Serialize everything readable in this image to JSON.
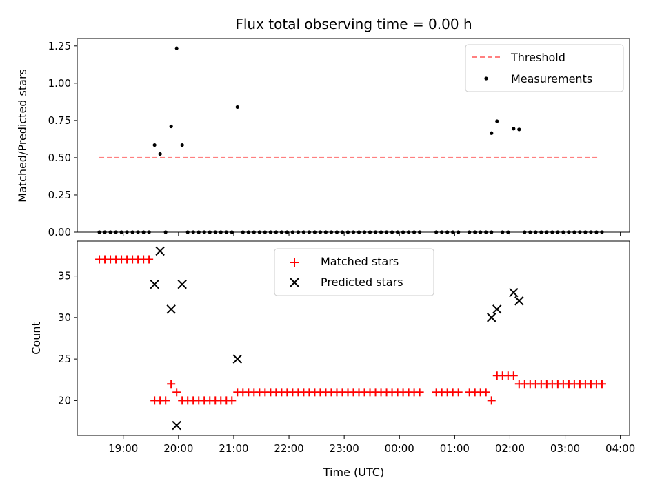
{
  "chart_data": [
    {
      "type": "scatter",
      "title": "Flux total observing time = 0.00 h",
      "xlabel": "",
      "ylabel": "Matched/Predicted stars",
      "ylim": [
        0,
        1.3
      ],
      "yticks": [
        "0.00",
        "0.25",
        "0.50",
        "0.75",
        "1.00",
        "1.25"
      ],
      "legend_position": "top-right",
      "threshold": {
        "name": "Threshold",
        "value": 0.5,
        "x_range": [
          "18:34",
          "03:36"
        ],
        "color": "#ff8080",
        "style": "dashed"
      },
      "series": [
        {
          "name": "Measurements",
          "color": "#000000",
          "marker": "dot",
          "points": [
            [
              "18:34",
              0
            ],
            [
              "18:40",
              0
            ],
            [
              "18:46",
              0
            ],
            [
              "18:52",
              0
            ],
            [
              "18:58",
              0
            ],
            [
              "19:04",
              0
            ],
            [
              "19:10",
              0
            ],
            [
              "19:16",
              0
            ],
            [
              "19:22",
              0
            ],
            [
              "19:28",
              0
            ],
            [
              "19:34",
              0.585
            ],
            [
              "19:40",
              0.525
            ],
            [
              "19:46",
              0
            ],
            [
              "19:52",
              0.71
            ],
            [
              "19:58",
              1.235
            ],
            [
              "20:04",
              0.585
            ],
            [
              "20:10",
              0
            ],
            [
              "20:16",
              0
            ],
            [
              "20:22",
              0
            ],
            [
              "20:28",
              0
            ],
            [
              "20:34",
              0
            ],
            [
              "20:40",
              0
            ],
            [
              "20:46",
              0
            ],
            [
              "20:52",
              0
            ],
            [
              "20:58",
              0
            ],
            [
              "21:04",
              0.84
            ],
            [
              "21:10",
              0
            ],
            [
              "21:16",
              0
            ],
            [
              "21:22",
              0
            ],
            [
              "21:28",
              0
            ],
            [
              "21:34",
              0
            ],
            [
              "21:40",
              0
            ],
            [
              "21:46",
              0
            ],
            [
              "21:52",
              0
            ],
            [
              "21:58",
              0
            ],
            [
              "22:04",
              0
            ],
            [
              "22:10",
              0
            ],
            [
              "22:16",
              0
            ],
            [
              "22:22",
              0
            ],
            [
              "22:28",
              0
            ],
            [
              "22:34",
              0
            ],
            [
              "22:40",
              0
            ],
            [
              "22:46",
              0
            ],
            [
              "22:52",
              0
            ],
            [
              "22:58",
              0
            ],
            [
              "23:04",
              0
            ],
            [
              "23:10",
              0
            ],
            [
              "23:16",
              0
            ],
            [
              "23:22",
              0
            ],
            [
              "23:28",
              0
            ],
            [
              "23:34",
              0
            ],
            [
              "23:40",
              0
            ],
            [
              "23:46",
              0
            ],
            [
              "23:52",
              0
            ],
            [
              "23:58",
              0
            ],
            [
              "00:04",
              0
            ],
            [
              "00:10",
              0
            ],
            [
              "00:16",
              0
            ],
            [
              "00:22",
              0
            ],
            [
              "00:40",
              0
            ],
            [
              "00:46",
              0
            ],
            [
              "00:52",
              0
            ],
            [
              "00:58",
              0
            ],
            [
              "01:04",
              0
            ],
            [
              "01:16",
              0
            ],
            [
              "01:22",
              0
            ],
            [
              "01:28",
              0
            ],
            [
              "01:34",
              0
            ],
            [
              "01:40",
              0
            ],
            [
              "01:40",
              0.665
            ],
            [
              "01:46",
              0.745
            ],
            [
              "01:52",
              0
            ],
            [
              "01:58",
              0
            ],
            [
              "02:04",
              0.695
            ],
            [
              "02:10",
              0.69
            ],
            [
              "02:16",
              0
            ],
            [
              "02:22",
              0
            ],
            [
              "02:28",
              0
            ],
            [
              "02:34",
              0
            ],
            [
              "02:40",
              0
            ],
            [
              "02:46",
              0
            ],
            [
              "02:52",
              0
            ],
            [
              "02:58",
              0
            ],
            [
              "03:04",
              0
            ],
            [
              "03:10",
              0
            ],
            [
              "03:16",
              0
            ],
            [
              "03:22",
              0
            ],
            [
              "03:28",
              0
            ],
            [
              "03:34",
              0
            ],
            [
              "03:40",
              0
            ]
          ]
        }
      ]
    },
    {
      "type": "scatter",
      "title": "",
      "xlabel": "Time (UTC)",
      "ylabel": "Count",
      "ylim": [
        15.8,
        39.2
      ],
      "yticks": [
        "20",
        "25",
        "30",
        "35"
      ],
      "xticks": [
        "19:00",
        "20:00",
        "21:00",
        "22:00",
        "23:00",
        "00:00",
        "01:00",
        "02:00",
        "03:00",
        "04:00"
      ],
      "legend_position": "top-center",
      "series": [
        {
          "name": "Matched stars",
          "color": "#ff0000",
          "marker": "plus",
          "points": [
            [
              "18:34",
              37
            ],
            [
              "18:40",
              37
            ],
            [
              "18:46",
              37
            ],
            [
              "18:52",
              37
            ],
            [
              "18:58",
              37
            ],
            [
              "19:04",
              37
            ],
            [
              "19:10",
              37
            ],
            [
              "19:16",
              37
            ],
            [
              "19:22",
              37
            ],
            [
              "19:28",
              37
            ],
            [
              "19:34",
              20
            ],
            [
              "19:40",
              20
            ],
            [
              "19:46",
              20
            ],
            [
              "19:52",
              22
            ],
            [
              "19:58",
              21
            ],
            [
              "20:04",
              20
            ],
            [
              "20:10",
              20
            ],
            [
              "20:16",
              20
            ],
            [
              "20:22",
              20
            ],
            [
              "20:28",
              20
            ],
            [
              "20:34",
              20
            ],
            [
              "20:40",
              20
            ],
            [
              "20:46",
              20
            ],
            [
              "20:52",
              20
            ],
            [
              "20:58",
              20
            ],
            [
              "21:04",
              21
            ],
            [
              "21:10",
              21
            ],
            [
              "21:16",
              21
            ],
            [
              "21:22",
              21
            ],
            [
              "21:28",
              21
            ],
            [
              "21:34",
              21
            ],
            [
              "21:40",
              21
            ],
            [
              "21:46",
              21
            ],
            [
              "21:52",
              21
            ],
            [
              "21:58",
              21
            ],
            [
              "22:04",
              21
            ],
            [
              "22:10",
              21
            ],
            [
              "22:16",
              21
            ],
            [
              "22:22",
              21
            ],
            [
              "22:28",
              21
            ],
            [
              "22:34",
              21
            ],
            [
              "22:40",
              21
            ],
            [
              "22:46",
              21
            ],
            [
              "22:52",
              21
            ],
            [
              "22:58",
              21
            ],
            [
              "23:04",
              21
            ],
            [
              "23:10",
              21
            ],
            [
              "23:16",
              21
            ],
            [
              "23:22",
              21
            ],
            [
              "23:28",
              21
            ],
            [
              "23:34",
              21
            ],
            [
              "23:40",
              21
            ],
            [
              "23:46",
              21
            ],
            [
              "23:52",
              21
            ],
            [
              "23:58",
              21
            ],
            [
              "00:04",
              21
            ],
            [
              "00:10",
              21
            ],
            [
              "00:16",
              21
            ],
            [
              "00:22",
              21
            ],
            [
              "00:40",
              21
            ],
            [
              "00:46",
              21
            ],
            [
              "00:52",
              21
            ],
            [
              "00:58",
              21
            ],
            [
              "01:04",
              21
            ],
            [
              "01:16",
              21
            ],
            [
              "01:22",
              21
            ],
            [
              "01:28",
              21
            ],
            [
              "01:34",
              21
            ],
            [
              "01:40",
              20
            ],
            [
              "01:46",
              23
            ],
            [
              "01:52",
              23
            ],
            [
              "01:58",
              23
            ],
            [
              "02:04",
              23
            ],
            [
              "02:10",
              22
            ],
            [
              "02:16",
              22
            ],
            [
              "02:22",
              22
            ],
            [
              "02:28",
              22
            ],
            [
              "02:34",
              22
            ],
            [
              "02:40",
              22
            ],
            [
              "02:46",
              22
            ],
            [
              "02:52",
              22
            ],
            [
              "02:58",
              22
            ],
            [
              "03:04",
              22
            ],
            [
              "03:10",
              22
            ],
            [
              "03:16",
              22
            ],
            [
              "03:22",
              22
            ],
            [
              "03:28",
              22
            ],
            [
              "03:34",
              22
            ],
            [
              "03:40",
              22
            ]
          ]
        },
        {
          "name": "Predicted stars",
          "color": "#000000",
          "marker": "x",
          "points": [
            [
              "19:34",
              34
            ],
            [
              "19:40",
              38
            ],
            [
              "19:52",
              31
            ],
            [
              "19:58",
              17
            ],
            [
              "20:04",
              34
            ],
            [
              "21:04",
              25
            ],
            [
              "01:40",
              30
            ],
            [
              "01:46",
              31
            ],
            [
              "02:04",
              33
            ],
            [
              "02:10",
              32
            ]
          ]
        }
      ]
    }
  ]
}
